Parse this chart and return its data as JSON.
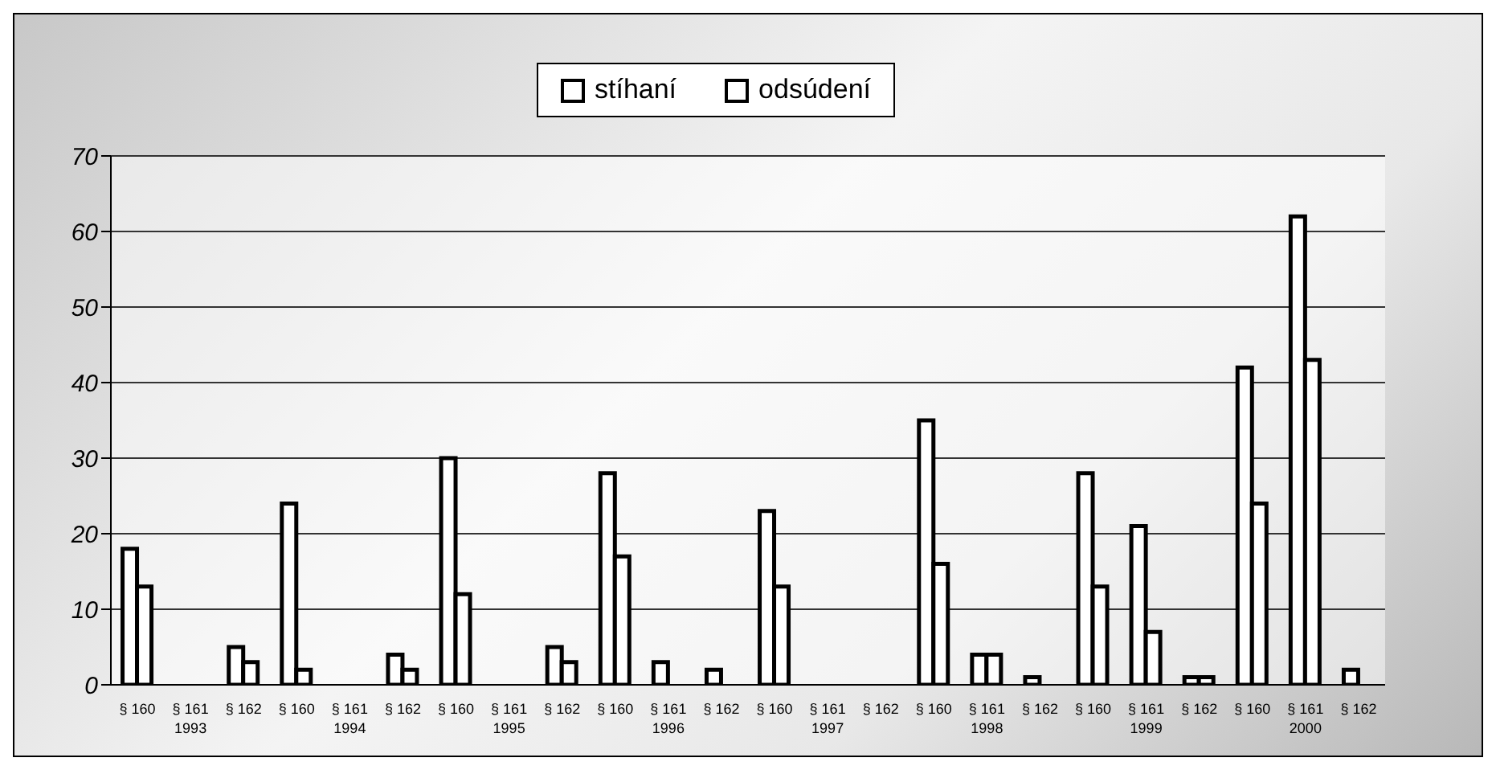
{
  "chart_data": {
    "type": "bar",
    "categories": [
      "§ 160",
      "§ 161",
      "§ 162",
      "§ 160",
      "§ 161",
      "§ 162",
      "§ 160",
      "§ 161",
      "§ 162",
      "§ 160",
      "§ 161",
      "§ 162",
      "§ 160",
      "§ 161",
      "§ 162",
      "§ 160",
      "§ 161",
      "§ 162",
      "§ 160",
      "§ 161",
      "§ 162",
      "§ 160",
      "§ 161",
      "§ 162"
    ],
    "series": [
      {
        "name": "stíhaní",
        "color": "#ffffff",
        "values": [
          18,
          0,
          5,
          24,
          0,
          4,
          30,
          0,
          5,
          28,
          3,
          2,
          23,
          0,
          0,
          35,
          4,
          1,
          28,
          21,
          1,
          42,
          62,
          2
        ]
      },
      {
        "name": "odsúdení",
        "color": "#ffffff",
        "values": [
          13,
          0,
          3,
          2,
          0,
          2,
          12,
          0,
          3,
          17,
          0,
          0,
          13,
          0,
          0,
          16,
          4,
          0,
          13,
          7,
          1,
          24,
          43,
          0
        ]
      }
    ],
    "annotations": [
      "1993",
      "1994",
      "1995",
      "1996",
      "1997",
      "1998",
      "1999",
      "2000"
    ],
    "ylim": [
      0,
      70
    ],
    "yticks": [
      0,
      10,
      20,
      30,
      40,
      50,
      60,
      70
    ],
    "grid": "y",
    "legend": "top"
  }
}
